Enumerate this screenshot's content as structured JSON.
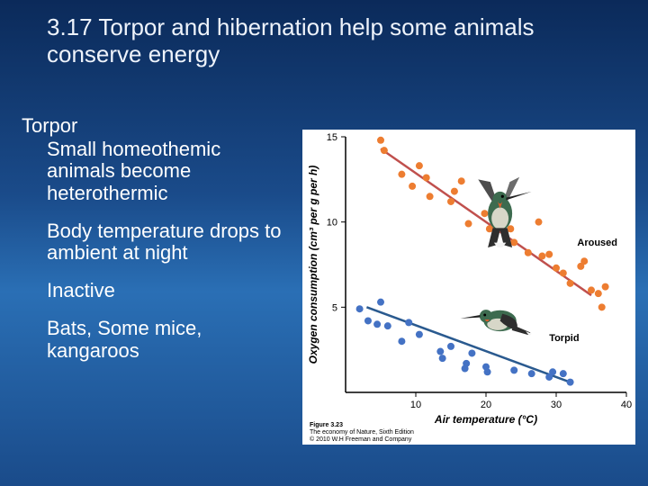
{
  "title": "3.17 Torpor and hibernation help some animals conserve energy",
  "body": {
    "heading": "Torpor",
    "p1": "Small homeothemic animals become heterothermic",
    "p2": "Body temperature drops to ambient at night",
    "p3": "Inactive",
    "p4": "Bats, Some mice, kangaroos"
  },
  "chart": {
    "type": "scatter",
    "xlabel": "Air temperature (°C)",
    "ylabel": "Oxygen consumption (cm³ per g per h)",
    "xlim": [
      0,
      40
    ],
    "ylim": [
      0,
      15
    ],
    "xtick_step": 10,
    "ytick_step": 5,
    "axis_color": "#000000",
    "grid_color": "#cccccc",
    "background_color": "#ffffff",
    "caption_line1": "Figure 3.23",
    "caption_line2": "The economy of Nature, Sixth Edition",
    "caption_line3": "© 2010 W.H Freeman and Company",
    "series": {
      "aroused": {
        "label": "Aroused",
        "point_color": "#ed7d31",
        "line_color": "#c0504d",
        "line_width": 2.5,
        "marker_size": 4,
        "trend": {
          "x1": 5,
          "y1": 14.3,
          "x2": 35,
          "y2": 5.7
        },
        "points": [
          [
            5,
            14.8
          ],
          [
            5.5,
            14.2
          ],
          [
            8,
            12.8
          ],
          [
            9.5,
            12.1
          ],
          [
            10.5,
            13.3
          ],
          [
            11.5,
            12.6
          ],
          [
            12,
            11.5
          ],
          [
            15,
            11.2
          ],
          [
            15.5,
            11.8
          ],
          [
            16.5,
            12.4
          ],
          [
            17.5,
            9.9
          ],
          [
            20.5,
            9.6
          ],
          [
            19.8,
            10.5
          ],
          [
            22,
            10.3
          ],
          [
            23.5,
            9.6
          ],
          [
            24,
            8.8
          ],
          [
            27.5,
            10
          ],
          [
            26,
            8.2
          ],
          [
            28,
            8.0
          ],
          [
            29,
            8.1
          ],
          [
            30,
            7.3
          ],
          [
            31,
            7.0
          ],
          [
            33.5,
            7.4
          ],
          [
            34,
            7.7
          ],
          [
            32,
            6.4
          ],
          [
            35,
            6.0
          ],
          [
            36,
            5.8
          ],
          [
            36.5,
            5.0
          ],
          [
            37,
            6.2
          ]
        ]
      },
      "torpid": {
        "label": "Torpid",
        "point_color": "#4472c4",
        "line_color": "#2a5a8f",
        "line_width": 2.5,
        "marker_size": 4,
        "trend": {
          "x1": 3,
          "y1": 5.0,
          "x2": 32,
          "y2": 0.6
        },
        "points": [
          [
            2,
            4.9
          ],
          [
            4.5,
            4.0
          ],
          [
            5,
            5.3
          ],
          [
            3.2,
            4.2
          ],
          [
            6,
            3.9
          ],
          [
            8,
            3.0
          ],
          [
            9,
            4.1
          ],
          [
            10.5,
            3.4
          ],
          [
            13.5,
            2.4
          ],
          [
            13.8,
            2.0
          ],
          [
            15,
            2.7
          ],
          [
            18,
            2.3
          ],
          [
            17.2,
            1.7
          ],
          [
            17,
            1.4
          ],
          [
            20,
            1.5
          ],
          [
            20.2,
            1.2
          ],
          [
            24,
            1.3
          ],
          [
            26.5,
            1.1
          ],
          [
            29,
            0.9
          ],
          [
            29.5,
            1.2
          ],
          [
            31,
            1.1
          ],
          [
            32,
            0.6
          ]
        ]
      }
    },
    "bird_colors": {
      "body": "#3d6b4f",
      "belly": "#d7d7c8",
      "wing_dark": "#2e2e2e",
      "beak": "#222222",
      "throat": "#e85d2a",
      "tail_white": "#f4f4f4"
    }
  }
}
